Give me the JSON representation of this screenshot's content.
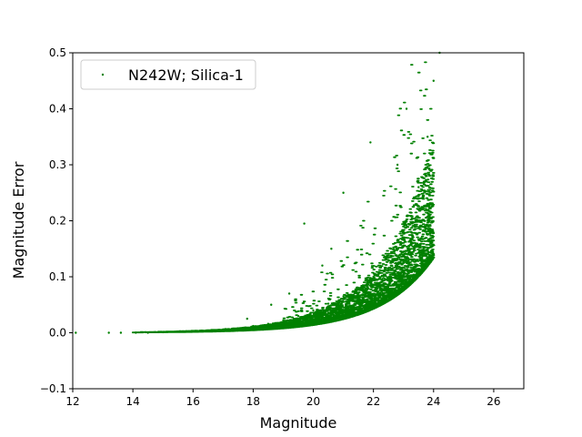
{
  "chart_data": {
    "type": "scatter",
    "title": "",
    "xlabel": "Magnitude",
    "ylabel": "Magnitude Error",
    "xlim": [
      12,
      27
    ],
    "ylim": [
      -0.1,
      0.5
    ],
    "xticks": [
      12,
      14,
      16,
      18,
      20,
      22,
      24,
      26
    ],
    "yticks": [
      -0.1,
      0.0,
      0.1,
      0.2,
      0.3,
      0.4,
      0.5
    ],
    "xtick_labels": [
      "12",
      "14",
      "16",
      "18",
      "20",
      "22",
      "24",
      "26"
    ],
    "ytick_labels": [
      "−0.1",
      "0.0",
      "0.1",
      "0.2",
      "0.3",
      "0.4",
      "0.5"
    ],
    "grid": false,
    "legend_position": "top-left",
    "series": [
      {
        "name": "N242W; Silica-1",
        "color": "#008000",
        "marker": "point",
        "points": [
          [
            12.1,
            0.0
          ],
          [
            13.2,
            0.0
          ],
          [
            13.6,
            0.0
          ],
          [
            14.1,
            0.0
          ],
          [
            14.5,
            0.0
          ],
          [
            15.0,
            0.001
          ],
          [
            15.5,
            0.002
          ],
          [
            16.0,
            0.003
          ],
          [
            16.5,
            0.004
          ],
          [
            17.0,
            0.006
          ],
          [
            17.5,
            0.008
          ],
          [
            18.0,
            0.012
          ],
          [
            18.5,
            0.016
          ],
          [
            19.0,
            0.022
          ],
          [
            19.5,
            0.03
          ],
          [
            20.0,
            0.04
          ],
          [
            20.5,
            0.052
          ],
          [
            21.0,
            0.065
          ],
          [
            21.5,
            0.08
          ],
          [
            22.0,
            0.1
          ],
          [
            22.5,
            0.13
          ],
          [
            23.0,
            0.18
          ],
          [
            23.5,
            0.26
          ],
          [
            23.8,
            0.35
          ],
          [
            24.0,
            0.45
          ],
          [
            24.2,
            0.5
          ],
          [
            19.7,
            0.195
          ],
          [
            21.9,
            0.34
          ],
          [
            21.0,
            0.25
          ],
          [
            20.6,
            0.15
          ],
          [
            20.3,
            0.12
          ],
          [
            19.2,
            0.07
          ],
          [
            18.6,
            0.05
          ],
          [
            17.8,
            0.025
          ],
          [
            22.8,
            0.3
          ],
          [
            23.1,
            0.4
          ]
        ]
      }
    ]
  }
}
